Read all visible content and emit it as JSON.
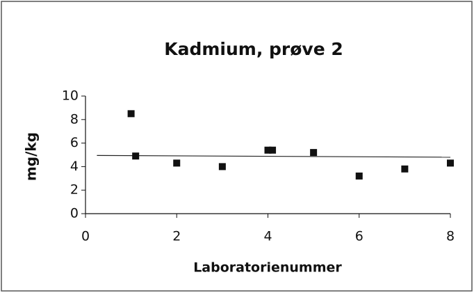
{
  "chart_data": {
    "type": "scatter",
    "title": "Kadmium, prøve 2",
    "x_label": "Laboratorienummer",
    "y_label": "mg/kg",
    "x": [
      1.0,
      1.1,
      2,
      3,
      4,
      4.1,
      5,
      6,
      7,
      8
    ],
    "values": [
      8.5,
      4.9,
      4.3,
      4.0,
      5.4,
      5.4,
      5.2,
      3.2,
      3.8,
      4.3
    ],
    "color": "#111111",
    "reference_line": {
      "x": [
        0.25,
        8
      ],
      "values": [
        4.95,
        4.8
      ],
      "color": "#222222"
    },
    "xlim": [
      0,
      8
    ],
    "ylim": [
      0,
      10
    ],
    "xticks": [
      0,
      2,
      4,
      6,
      8
    ],
    "yticks": [
      0,
      2,
      4,
      6,
      8,
      10
    ],
    "grid": false
  }
}
